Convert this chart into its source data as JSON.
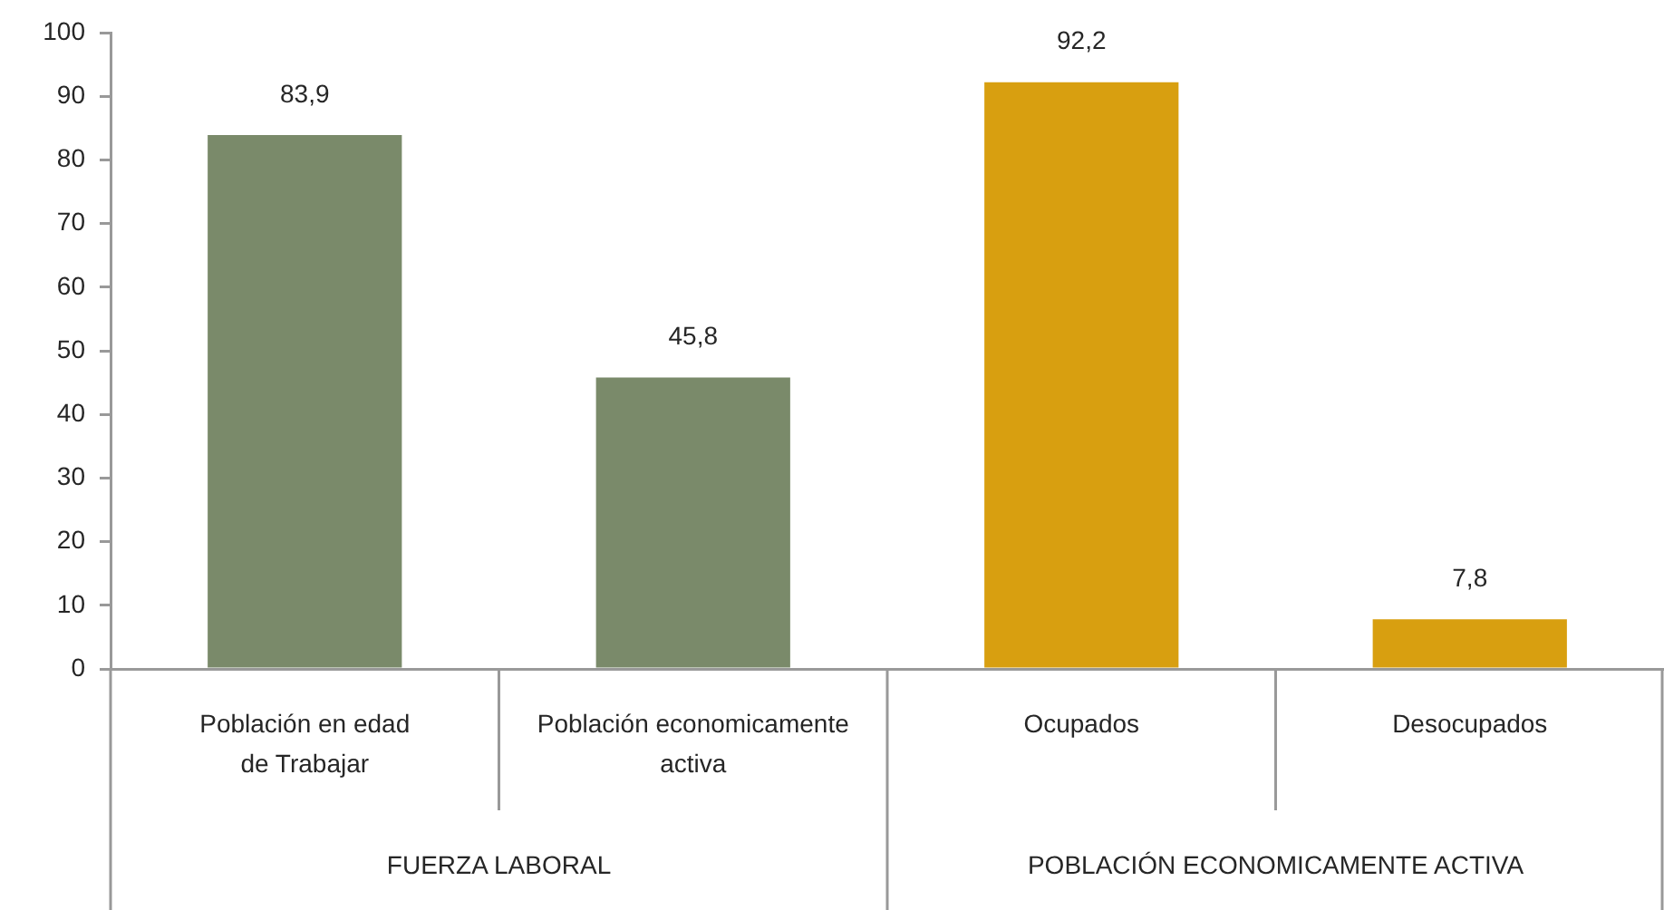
{
  "chart_data": {
    "type": "bar",
    "categories": [
      "Población en edad de Trabajar",
      "Población economicamente activa",
      "Ocupados",
      "Desocupados"
    ],
    "values": [
      83.9,
      45.8,
      92.2,
      7.8
    ],
    "colors": [
      "#7a8a6a",
      "#7a8a6a",
      "#d89f10",
      "#d89f10"
    ],
    "value_labels": [
      "83,9",
      "45,8",
      "92,2",
      "7,8"
    ],
    "ylim": [
      0,
      100
    ],
    "yticks": [
      0,
      10,
      20,
      30,
      40,
      50,
      60,
      70,
      80,
      90,
      100
    ],
    "grid": false,
    "legend": false,
    "annotations": [
      "FUERZA LABORAL",
      "POBLACIÓN ECONOMICAMENTE ACTIVA"
    ]
  }
}
